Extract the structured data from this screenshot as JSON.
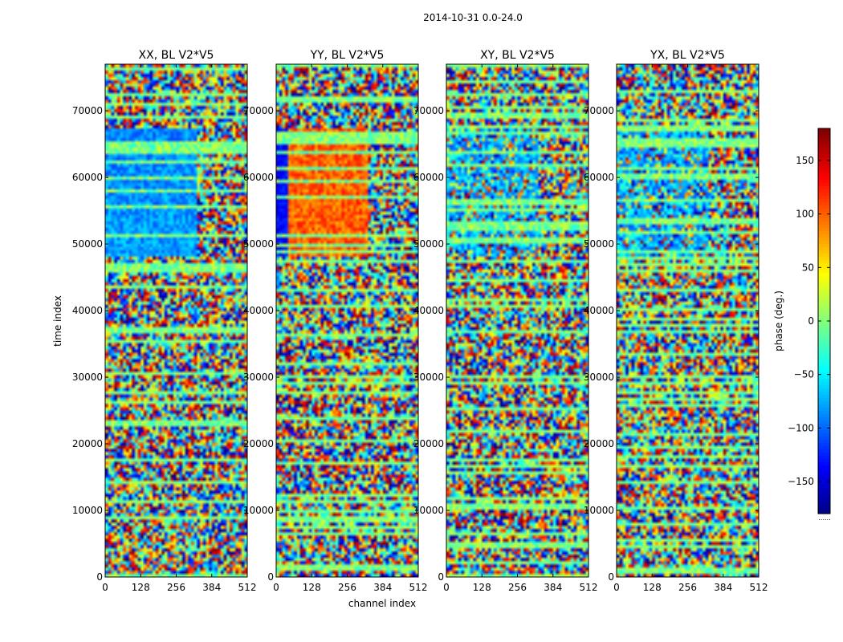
{
  "figure": {
    "suptitle": "2014-10-31 0.0-24.0",
    "ylabel": "time index",
    "xlabel": "channel index",
    "colorbar_label": "phase (deg.)",
    "colorbar_ticks": [
      150,
      100,
      50,
      0,
      -50,
      -100,
      -150
    ],
    "colormap": "jet",
    "colorbar_min_label": "......"
  },
  "chart_data": {
    "type": "heatmap",
    "colormap": "jet",
    "value_range": [
      -180,
      180
    ],
    "x_ticks": [
      0,
      128,
      256,
      384,
      512
    ],
    "y_ticks": [
      0,
      10000,
      20000,
      30000,
      40000,
      50000,
      60000,
      70000
    ],
    "xlim": [
      0,
      512
    ],
    "ylim": [
      0,
      77000
    ],
    "panels": [
      {
        "title": "XX, BL V2*V5",
        "features": "coherent cyan/blue band 48000-67000 at channels 0-320; noisy elsewhere"
      },
      {
        "title": "YY, BL V2*V5",
        "features": "strong blue-to-red gradient band 48000-69000 across channels 0-330; bright rows near 8500, 36000, 41000"
      },
      {
        "title": "XY, BL V2*V5",
        "features": "weak cyan-blue structure 48000-67000; noisy elsewhere"
      },
      {
        "title": "YX, BL V2*V5",
        "features": "weak cyan-blue structure 48000-67000; noisy elsewhere"
      }
    ]
  }
}
